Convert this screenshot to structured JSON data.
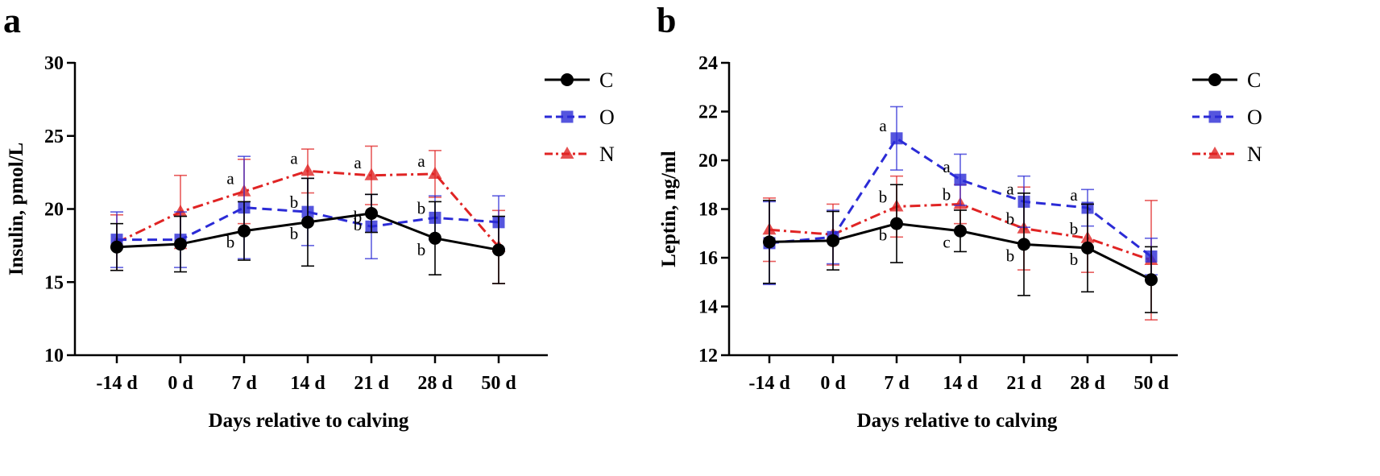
{
  "chart_data": [
    {
      "panel_label": "a",
      "type": "line",
      "title": "",
      "xlabel": "Days relative to calving",
      "ylabel": "Insulin, pmol/L",
      "ylim": [
        10,
        30
      ],
      "yticks": [
        10,
        15,
        20,
        25,
        30
      ],
      "categories": [
        "-14 d",
        "0 d",
        "7 d",
        "14 d",
        "21 d",
        "28 d",
        "50 d"
      ],
      "legend_position": "top-right",
      "series": [
        {
          "name": "C",
          "color": "#000000",
          "marker": "circle",
          "dash": "solid",
          "values": [
            17.4,
            17.6,
            18.5,
            19.1,
            19.7,
            18.0,
            17.2
          ],
          "errors": [
            1.6,
            1.9,
            2.0,
            3.0,
            1.3,
            2.5,
            2.3
          ],
          "labels": [
            "",
            "",
            "b",
            "b",
            "b",
            "b",
            ""
          ]
        },
        {
          "name": "O",
          "color": "#2b2bd6",
          "marker": "square",
          "dash": "dash",
          "values": [
            17.9,
            17.9,
            20.1,
            19.8,
            18.8,
            19.4,
            19.1
          ],
          "errors": [
            1.9,
            1.9,
            3.5,
            2.3,
            2.2,
            1.5,
            1.8
          ],
          "labels": [
            "",
            "",
            "",
            "b",
            "b",
            "b",
            ""
          ]
        },
        {
          "name": "N",
          "color": "#e02424",
          "marker": "triangle",
          "dash": "dashdot",
          "values": [
            17.7,
            19.8,
            21.2,
            22.6,
            22.3,
            22.4,
            17.4
          ],
          "errors": [
            1.9,
            2.5,
            2.2,
            1.5,
            2.0,
            1.6,
            2.5
          ],
          "labels": [
            "",
            "",
            "a",
            "a",
            "a",
            "a",
            ""
          ]
        }
      ]
    },
    {
      "panel_label": "b",
      "type": "line",
      "title": "",
      "xlabel": "Days relative to calving",
      "ylabel": "Leptin, ng/ml",
      "ylim": [
        12,
        24
      ],
      "yticks": [
        12,
        14,
        16,
        18,
        20,
        22,
        24
      ],
      "categories": [
        "-14 d",
        "0 d",
        "7 d",
        "14 d",
        "21 d",
        "28 d",
        "50 d"
      ],
      "legend_position": "top-right",
      "series": [
        {
          "name": "C",
          "color": "#000000",
          "marker": "circle",
          "dash": "solid",
          "values": [
            16.65,
            16.7,
            17.4,
            17.1,
            16.55,
            16.4,
            15.1
          ],
          "errors": [
            1.7,
            1.2,
            1.6,
            0.85,
            2.1,
            1.8,
            1.35
          ],
          "labels": [
            "",
            "",
            "b",
            "c",
            "b",
            "b",
            ""
          ]
        },
        {
          "name": "O",
          "color": "#2b2bd6",
          "marker": "square",
          "dash": "dash",
          "values": [
            16.6,
            16.85,
            20.9,
            19.2,
            18.3,
            18.05,
            16.05
          ],
          "errors": [
            1.7,
            1.1,
            1.3,
            1.05,
            1.05,
            0.75,
            0.75
          ],
          "labels": [
            "",
            "",
            "a",
            "a",
            "a",
            "a",
            ""
          ]
        },
        {
          "name": "N",
          "color": "#e02424",
          "marker": "triangle",
          "dash": "dashdot",
          "values": [
            17.15,
            16.95,
            18.1,
            18.2,
            17.2,
            16.8,
            15.9
          ],
          "errors": [
            1.3,
            1.25,
            1.25,
            0.8,
            1.7,
            1.4,
            2.45
          ],
          "labels": [
            "",
            "",
            "b",
            "b",
            "b",
            "b",
            ""
          ]
        }
      ]
    }
  ]
}
